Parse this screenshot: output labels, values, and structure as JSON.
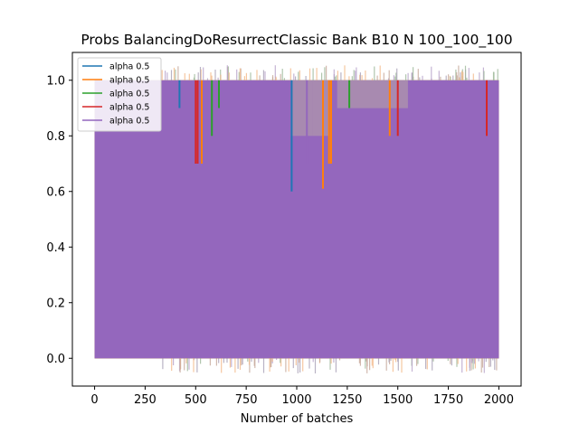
{
  "chart_data": {
    "type": "line",
    "title": "Probs BalancingDoResurrectClassic Bank B10 N 100_100_100",
    "xlabel": "Number of batches",
    "ylabel": "",
    "xlim": [
      -110,
      2110
    ],
    "ylim": [
      -0.1,
      1.1
    ],
    "x_ticks": [
      0,
      250,
      500,
      750,
      1000,
      1250,
      1500,
      1750,
      2000
    ],
    "y_ticks": [
      0.0,
      0.2,
      0.4,
      0.6,
      0.8,
      1.0
    ],
    "x_tick_labels": [
      "0",
      "250",
      "500",
      "750",
      "1000",
      "1250",
      "1500",
      "1750",
      "2000"
    ],
    "y_tick_labels": [
      "0.0",
      "0.2",
      "0.4",
      "0.6",
      "0.8",
      "1.0"
    ],
    "grid": false,
    "legend_placement": "upper-left",
    "series": [
      {
        "name": "alpha 0.5",
        "color": "#1f77b4",
        "x_range": [
          0,
          2000
        ],
        "band": [
          0.0,
          1.0
        ]
      },
      {
        "name": "alpha 0.5",
        "color": "#ff7f0e",
        "x_range": [
          0,
          2000
        ],
        "band": [
          0.0,
          1.0
        ]
      },
      {
        "name": "alpha 0.5",
        "color": "#2ca02c",
        "x_range": [
          0,
          2000
        ],
        "band": [
          0.0,
          1.0
        ]
      },
      {
        "name": "alpha 0.5",
        "color": "#d62728",
        "x_range": [
          0,
          2000
        ],
        "band": [
          0.0,
          1.0
        ]
      },
      {
        "name": "alpha 0.5",
        "color": "#9467bd",
        "x_range": [
          0,
          2000
        ],
        "band": [
          0.0,
          1.0
        ]
      }
    ],
    "dip_regions": [
      {
        "x_range": [
          970,
          1080
        ],
        "y_top": 0.8
      },
      {
        "x_range": [
          1080,
          1160
        ],
        "y_top": 0.8
      },
      {
        "x_range": [
          1200,
          1320
        ],
        "y_top": 0.9
      },
      {
        "x_range": [
          1320,
          1550
        ],
        "y_top": 0.9
      }
    ]
  }
}
